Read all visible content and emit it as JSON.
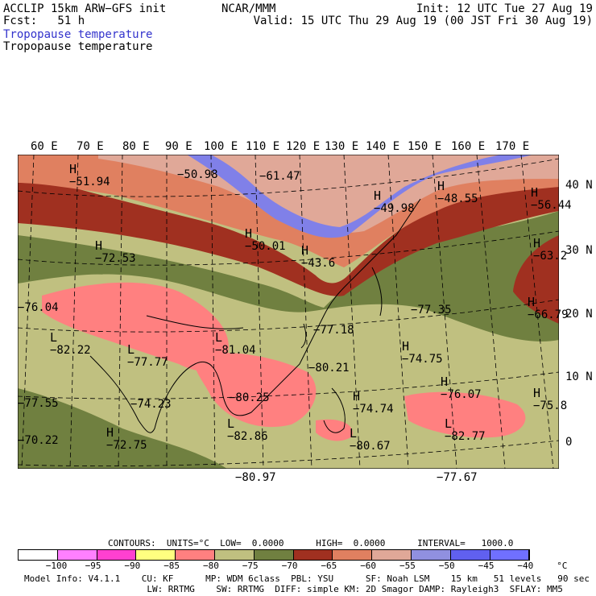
{
  "header": {
    "model": "ACCLIP 15km ARW−GFS init",
    "forecast": "Fcst:   51 h",
    "center": "NCAR/MMM",
    "init": "Init: 12 UTC Tue 27 Aug 19",
    "valid": "Valid: 15 UTC Thu 29 Aug 19 (00 JST Fri 30 Aug 19)",
    "field_blue": "Tropopause temperature",
    "field_black": "Tropopause temperature"
  },
  "map": {
    "lon_labels": [
      "60 E",
      "70 E",
      "80 E",
      "90 E",
      "100 E",
      "110 E",
      "120 E",
      "130 E",
      "140 E",
      "150 E",
      "160 E",
      "170 E"
    ],
    "lat_labels": [
      "40 N",
      "30 N",
      "20 N",
      "10 N",
      "0"
    ],
    "points": [
      {
        "type": "H",
        "value": "−51.94"
      },
      {
        "type": "",
        "value": "−50.98"
      },
      {
        "type": "",
        "value": "−61.47"
      },
      {
        "type": "H",
        "value": "−49.98"
      },
      {
        "type": "H",
        "value": "−48.55"
      },
      {
        "type": "H",
        "value": "−56.44"
      },
      {
        "type": "H",
        "value": "−50.01"
      },
      {
        "type": "H",
        "value": "−43.6"
      },
      {
        "type": "H",
        "value": "−72.53"
      },
      {
        "type": "H",
        "value": "−63.2"
      },
      {
        "type": "",
        "value": "−76.04"
      },
      {
        "type": "H",
        "value": "−66.79"
      },
      {
        "type": "",
        "value": "−77.35"
      },
      {
        "type": "",
        "value": "−77.18"
      },
      {
        "type": "L",
        "value": "−82.22"
      },
      {
        "type": "L",
        "value": "−77.77"
      },
      {
        "type": "L",
        "value": "−81.04"
      },
      {
        "type": "H",
        "value": "−74.75"
      },
      {
        "type": "",
        "value": "−80.21"
      },
      {
        "type": "H",
        "value": "−76.07"
      },
      {
        "type": "",
        "value": "−77.55"
      },
      {
        "type": "",
        "value": "−74.23"
      },
      {
        "type": "",
        "value": "−80.25"
      },
      {
        "type": "H",
        "value": "−74.74"
      },
      {
        "type": "H",
        "value": "−75.8"
      },
      {
        "type": "",
        "value": "−70.22"
      },
      {
        "type": "H",
        "value": "−72.75"
      },
      {
        "type": "L",
        "value": "−82.86"
      },
      {
        "type": "L",
        "value": "−80.67"
      },
      {
        "type": "L",
        "value": "−82.77"
      },
      {
        "type": "",
        "value": "−80.97"
      },
      {
        "type": "",
        "value": "−77.67"
      }
    ]
  },
  "contours": {
    "units": "CONTOURS:  UNITS=°C  LOW=  0.0000      HIGH=  0.0000      INTERVAL=   1000.0"
  },
  "colorbar": {
    "colors": [
      "#ffffff",
      "#ff80ff",
      "#ff40d0",
      "#ffff80",
      "#ff8080",
      "#c0c080",
      "#708040",
      "#a03020",
      "#e08060",
      "#e0a898",
      "#9090e0",
      "#6060f0",
      "#7070ff"
    ],
    "ticks": [
      "−100",
      "−95",
      "−90",
      "−85",
      "−80",
      "−75",
      "−70",
      "−65",
      "−60",
      "−55",
      "−50",
      "−45",
      "−40",
      "°C"
    ]
  },
  "footer": {
    "line1": "Model Info: V4.1.1    CU: KF      MP: WDM 6class  PBL: YSU      SF: Noah LSM    15 km   51 levels   90 sec",
    "line2": "                       LW: RRTMG    SW: RRTMG  DIFF: simple KM: 2D Smagor DAMP: Rayleigh3  SFLAY: MM5"
  }
}
